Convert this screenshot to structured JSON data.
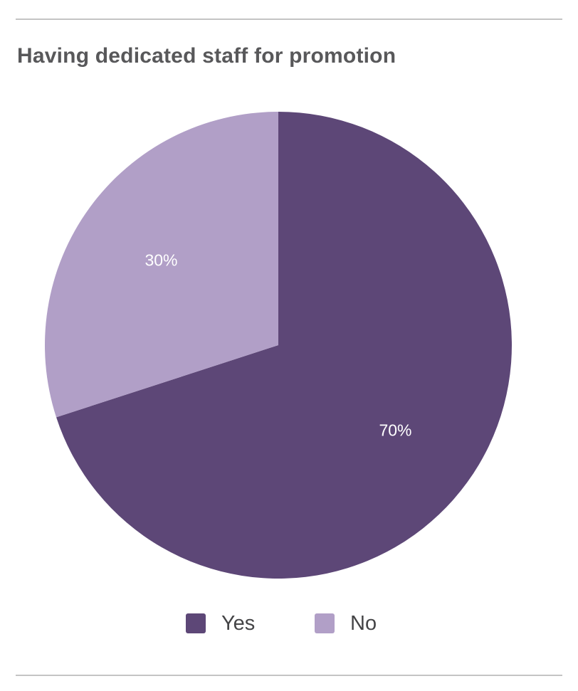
{
  "chart_data": {
    "type": "pie",
    "title": "Having dedicated staff for promotion",
    "categories": [
      "Yes",
      "No"
    ],
    "values": [
      70,
      30
    ],
    "labels": [
      "70%",
      "30%"
    ],
    "colors": [
      "#5d4777",
      "#b19fc7"
    ],
    "start_angle": "12 o'clock",
    "direction": "clockwise",
    "legend": {
      "position": "bottom",
      "items": [
        {
          "label": "Yes",
          "color": "#5d4777"
        },
        {
          "label": "No",
          "color": "#b19fc7"
        }
      ]
    }
  }
}
